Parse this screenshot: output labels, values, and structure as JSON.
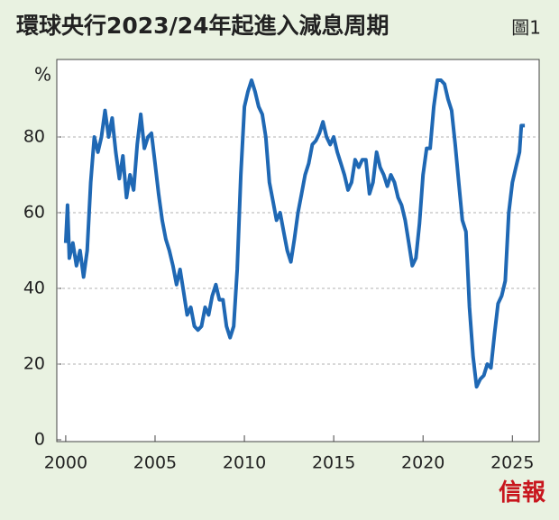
{
  "chart_data": {
    "type": "line",
    "title": "環球央行2023/24年起進入減息周期",
    "figure_label": "圖1",
    "y_label": "%",
    "source": "信報",
    "xlim": [
      1999.5,
      2026.5
    ],
    "xticks": [
      2000,
      2005,
      2010,
      2015,
      2020,
      2025
    ],
    "ylim": [
      0,
      100
    ],
    "yticks": [
      0,
      20,
      40,
      60,
      80
    ],
    "grid": true,
    "series": [
      {
        "color": "#1f68b4",
        "x": [
          2000.0,
          2000.1,
          2000.2,
          2000.4,
          2000.6,
          2000.8,
          2001.0,
          2001.2,
          2001.4,
          2001.6,
          2001.8,
          2002.0,
          2002.2,
          2002.4,
          2002.6,
          2002.8,
          2003.0,
          2003.2,
          2003.4,
          2003.6,
          2003.8,
          2004.0,
          2004.2,
          2004.4,
          2004.6,
          2004.8,
          2005.0,
          2005.2,
          2005.4,
          2005.6,
          2005.8,
          2006.0,
          2006.2,
          2006.4,
          2006.6,
          2006.8,
          2007.0,
          2007.2,
          2007.4,
          2007.6,
          2007.8,
          2008.0,
          2008.2,
          2008.4,
          2008.6,
          2008.8,
          2009.0,
          2009.2,
          2009.4,
          2009.6,
          2009.8,
          2010.0,
          2010.2,
          2010.4,
          2010.6,
          2010.8,
          2011.0,
          2011.2,
          2011.4,
          2011.6,
          2011.8,
          2012.0,
          2012.2,
          2012.4,
          2012.6,
          2012.8,
          2013.0,
          2013.2,
          2013.4,
          2013.6,
          2013.8,
          2014.0,
          2014.2,
          2014.4,
          2014.6,
          2014.8,
          2015.0,
          2015.2,
          2015.4,
          2015.6,
          2015.8,
          2016.0,
          2016.2,
          2016.4,
          2016.6,
          2016.8,
          2017.0,
          2017.2,
          2017.4,
          2017.6,
          2017.8,
          2018.0,
          2018.2,
          2018.4,
          2018.6,
          2018.8,
          2019.0,
          2019.2,
          2019.4,
          2019.6,
          2019.8,
          2020.0,
          2020.2,
          2020.4,
          2020.6,
          2020.8,
          2021.0,
          2021.2,
          2021.4,
          2021.6,
          2021.8,
          2022.0,
          2022.2,
          2022.4,
          2022.6,
          2022.8,
          2023.0,
          2023.2,
          2023.4,
          2023.6,
          2023.8,
          2024.0,
          2024.2,
          2024.4,
          2024.6,
          2024.8,
          2025.0,
          2025.2,
          2025.4,
          2025.5,
          2025.7
        ],
        "values": [
          52,
          62,
          48,
          52,
          46,
          50,
          43,
          50,
          68,
          80,
          76,
          80,
          87,
          80,
          85,
          76,
          69,
          75,
          64,
          70,
          66,
          78,
          86,
          77,
          80,
          81,
          73,
          65,
          58,
          53,
          50,
          46,
          41,
          45,
          39,
          33,
          35,
          30,
          29,
          30,
          35,
          33,
          38,
          41,
          37,
          37,
          30,
          27,
          30,
          45,
          70,
          88,
          92,
          95,
          92,
          88,
          86,
          80,
          68,
          63,
          58,
          60,
          55,
          50,
          47,
          53,
          60,
          65,
          70,
          73,
          78,
          79,
          81,
          84,
          80,
          78,
          80,
          76,
          73,
          70,
          66,
          68,
          74,
          72,
          74,
          74,
          65,
          68,
          76,
          72,
          70,
          67,
          70,
          68,
          64,
          62,
          58,
          52,
          46,
          48,
          57,
          70,
          77,
          77,
          88,
          95,
          95,
          94,
          90,
          87,
          78,
          68,
          58,
          55,
          35,
          22,
          14,
          16,
          17,
          20,
          19,
          28,
          36,
          38,
          42,
          60,
          68,
          72,
          76,
          83,
          83
        ]
      }
    ]
  }
}
